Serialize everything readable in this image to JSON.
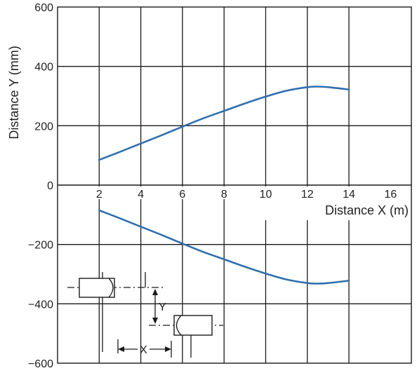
{
  "chart_data": {
    "type": "line",
    "xlabel": "Distance X (m)",
    "ylabel": "Distance Y (mm)",
    "xlim": [
      0,
      17
    ],
    "ylim": [
      -600,
      600
    ],
    "x_ticks": [
      2,
      4,
      6,
      8,
      10,
      12,
      14,
      16
    ],
    "y_ticks": [
      600,
      400,
      200,
      0,
      -200,
      -400,
      -600
    ],
    "y_tick_labels": [
      "600",
      "400",
      "200",
      "0",
      "−200",
      "−400",
      "−600"
    ],
    "x_grid": [
      2,
      4,
      6,
      8,
      10,
      12,
      14
    ],
    "grid": true,
    "series": [
      {
        "color": "#2f6fae",
        "x": [
          2,
          3,
          4,
          5,
          6,
          7,
          8,
          9,
          10,
          11,
          12,
          12.5,
          13,
          14
        ],
        "y": [
          85,
          112,
          140,
          168,
          197,
          225,
          250,
          275,
          298,
          318,
          330,
          332,
          330,
          322
        ]
      },
      {
        "color": "#2f6fae",
        "x": [
          2,
          3,
          4,
          5,
          6,
          7,
          8,
          9,
          10,
          11,
          12,
          12.5,
          13,
          14
        ],
        "y": [
          -85,
          -112,
          -140,
          -168,
          -197,
          -225,
          -250,
          -275,
          -298,
          -318,
          -330,
          -332,
          -330,
          -322
        ]
      }
    ],
    "inset_diagram": {
      "x_label": "X",
      "y_label": "Y"
    }
  }
}
